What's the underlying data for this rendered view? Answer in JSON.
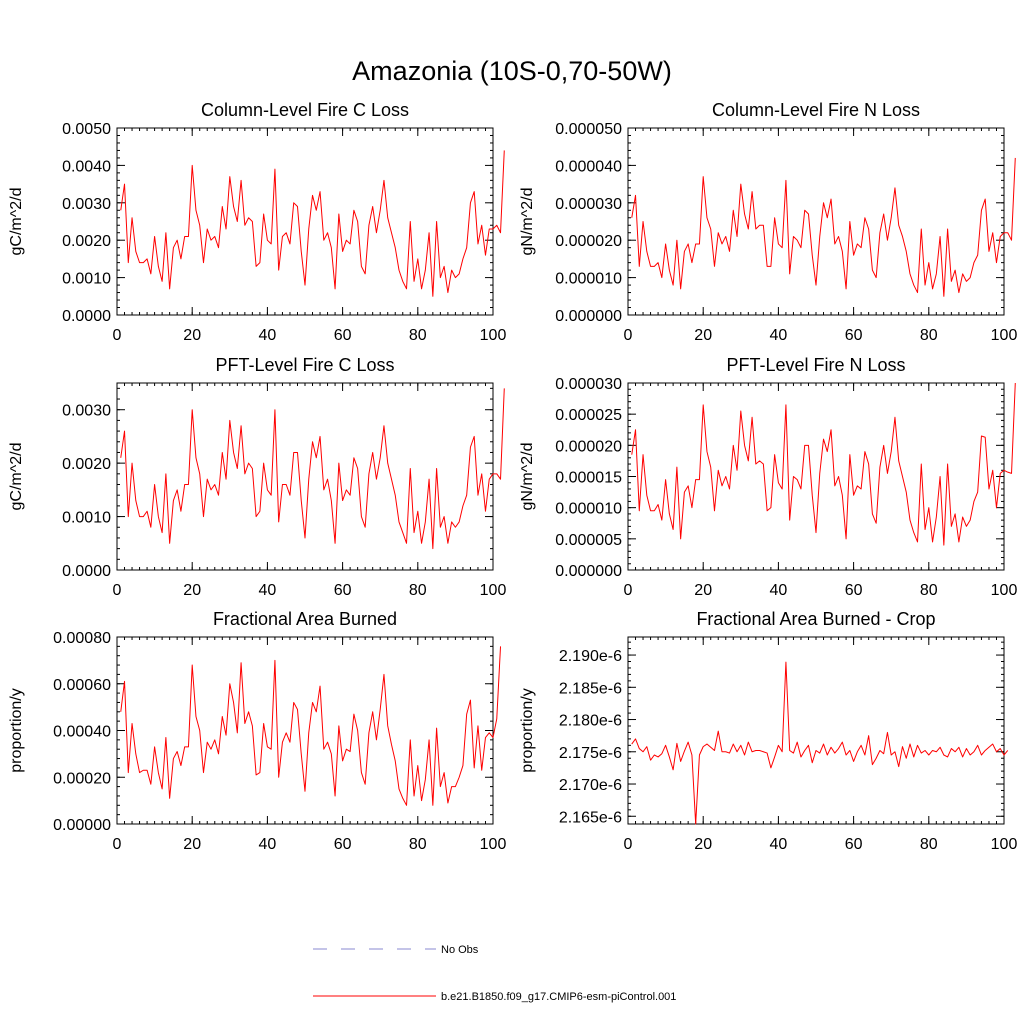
{
  "figure": {
    "title": "Amazonia (10S-0,70-50W)"
  },
  "legend": {
    "items": [
      {
        "label": "No Obs",
        "color": "#8a8ad0",
        "style": "dashed"
      },
      {
        "label": "b.e21.B1850.f09_g17.CMIP6-esm-piControl.001",
        "color": "#ff0000",
        "style": "solid"
      }
    ]
  },
  "chart_data": [
    {
      "type": "line",
      "title": "Column-Level Fire C Loss",
      "ylabel": "gC/m^2/d",
      "xlim": [
        0,
        100
      ],
      "ylim": [
        0,
        0.005
      ],
      "xticks": [
        0,
        20,
        40,
        60,
        80,
        100
      ],
      "xtick_labels": [
        "0",
        "20",
        "40",
        "60",
        "80",
        "100"
      ],
      "yticks": [
        0,
        0.001,
        0.002,
        0.003,
        0.004,
        0.005
      ],
      "ytick_labels": [
        "0.0000",
        "0.0010",
        "0.0020",
        "0.0030",
        "0.0040",
        "0.0050"
      ],
      "series": [
        {
          "color": "#ff0000",
          "x_start": 1,
          "values": [
            0.0028,
            0.0035,
            0.0014,
            0.0026,
            0.0017,
            0.0014,
            0.0014,
            0.0015,
            0.0011,
            0.0021,
            0.0013,
            0.0009,
            0.0022,
            0.0007,
            0.0018,
            0.002,
            0.0015,
            0.0021,
            0.0021,
            0.004,
            0.0028,
            0.0024,
            0.0014,
            0.0023,
            0.002,
            0.0021,
            0.0018,
            0.0029,
            0.0023,
            0.0037,
            0.0029,
            0.0025,
            0.0036,
            0.0024,
            0.0026,
            0.0025,
            0.0013,
            0.0014,
            0.0027,
            0.002,
            0.0019,
            0.0039,
            0.0012,
            0.0021,
            0.0022,
            0.0019,
            0.003,
            0.0029,
            0.0017,
            0.0008,
            0.0023,
            0.0032,
            0.0028,
            0.0033,
            0.002,
            0.0022,
            0.0018,
            0.0007,
            0.0027,
            0.0017,
            0.002,
            0.0019,
            0.0028,
            0.0025,
            0.0013,
            0.0011,
            0.0024,
            0.0029,
            0.0022,
            0.0028,
            0.0036,
            0.0026,
            0.0022,
            0.0018,
            0.0012,
            0.0009,
            0.0007,
            0.0025,
            0.0009,
            0.0015,
            0.0007,
            0.0012,
            0.0022,
            0.0005,
            0.0025,
            0.001,
            0.0013,
            0.0006,
            0.0012,
            0.001,
            0.0011,
            0.0015,
            0.0018,
            0.003,
            0.0033,
            0.0019,
            0.0024,
            0.0016,
            0.0023,
            0.0023,
            0.0024,
            0.0022,
            0.0044
          ]
        }
      ]
    },
    {
      "type": "line",
      "title": "Column-Level Fire N Loss",
      "ylabel": "gN/m^2/d",
      "xlim": [
        0,
        100
      ],
      "ylim": [
        0,
        5e-05
      ],
      "xticks": [
        0,
        20,
        40,
        60,
        80,
        100
      ],
      "xtick_labels": [
        "0",
        "20",
        "40",
        "60",
        "80",
        "100"
      ],
      "yticks": [
        0,
        1e-05,
        2e-05,
        3e-05,
        4e-05,
        5e-05
      ],
      "ytick_labels": [
        "0.000000",
        "0.000010",
        "0.000020",
        "0.000030",
        "0.000040",
        "0.000050"
      ],
      "series": [
        {
          "color": "#ff0000",
          "x_start": 1,
          "values": [
            2.6e-05,
            3.2e-05,
            1.3e-05,
            2.5e-05,
            1.7e-05,
            1.3e-05,
            1.3e-05,
            1.4e-05,
            1e-05,
            1.9e-05,
            1.2e-05,
            8e-06,
            2e-05,
            7e-06,
            1.7e-05,
            1.9e-05,
            1.4e-05,
            1.9e-05,
            1.9e-05,
            3.7e-05,
            2.6e-05,
            2.3e-05,
            1.3e-05,
            2.2e-05,
            1.9e-05,
            2.1e-05,
            1.7e-05,
            2.8e-05,
            2.1e-05,
            3.5e-05,
            2.7e-05,
            2.3e-05,
            3.3e-05,
            2.3e-05,
            2.4e-05,
            2.4e-05,
            1.3e-05,
            1.3e-05,
            2.6e-05,
            1.9e-05,
            1.8e-05,
            3.6e-05,
            1.1e-05,
            2.1e-05,
            2e-05,
            1.8e-05,
            2.8e-05,
            2.7e-05,
            1.6e-05,
            8e-06,
            2.1e-05,
            3e-05,
            2.6e-05,
            3.1e-05,
            1.9e-05,
            2.1e-05,
            1.7e-05,
            7e-06,
            2.5e-05,
            1.6e-05,
            1.9e-05,
            1.8e-05,
            2.6e-05,
            2.3e-05,
            1.2e-05,
            1e-05,
            2.2e-05,
            2.7e-05,
            2e-05,
            2.6e-05,
            3.4e-05,
            2.4e-05,
            2.1e-05,
            1.7e-05,
            1.1e-05,
            8e-06,
            6e-06,
            2.3e-05,
            8e-06,
            1.4e-05,
            7e-06,
            1.1e-05,
            2.1e-05,
            5e-06,
            2.3e-05,
            9e-06,
            1.2e-05,
            6e-06,
            1.1e-05,
            9e-06,
            1e-05,
            1.4e-05,
            1.6e-05,
            2.8e-05,
            3.1e-05,
            1.7e-05,
            2.2e-05,
            1.4e-05,
            2.1e-05,
            2.2e-05,
            2.2e-05,
            2e-05,
            4.2e-05
          ]
        }
      ]
    },
    {
      "type": "line",
      "title": "PFT-Level Fire C Loss",
      "ylabel": "gC/m^2/d",
      "xlim": [
        0,
        100
      ],
      "ylim": [
        0,
        0.0035
      ],
      "xticks": [
        0,
        20,
        40,
        60,
        80,
        100
      ],
      "xtick_labels": [
        "0",
        "20",
        "40",
        "60",
        "80",
        "100"
      ],
      "yticks": [
        0,
        0.001,
        0.002,
        0.003
      ],
      "ytick_labels": [
        "0.0000",
        "0.0010",
        "0.0020",
        "0.0030"
      ],
      "series": [
        {
          "color": "#ff0000",
          "x_start": 1,
          "values": [
            0.0021,
            0.0026,
            0.001,
            0.002,
            0.0013,
            0.001,
            0.001,
            0.0011,
            0.0008,
            0.0016,
            0.001,
            0.0007,
            0.0018,
            0.0005,
            0.0013,
            0.0015,
            0.0011,
            0.0016,
            0.0016,
            0.003,
            0.0021,
            0.0018,
            0.001,
            0.0017,
            0.0015,
            0.0016,
            0.0014,
            0.0022,
            0.0017,
            0.0028,
            0.0022,
            0.0019,
            0.0027,
            0.0018,
            0.002,
            0.0019,
            0.001,
            0.0011,
            0.002,
            0.0015,
            0.0014,
            0.003,
            0.0009,
            0.0016,
            0.0016,
            0.0014,
            0.0022,
            0.0022,
            0.0013,
            0.0006,
            0.0017,
            0.0024,
            0.0021,
            0.0025,
            0.0015,
            0.0017,
            0.0013,
            0.0005,
            0.002,
            0.0013,
            0.0015,
            0.0014,
            0.0021,
            0.0019,
            0.001,
            0.0008,
            0.0018,
            0.0022,
            0.0017,
            0.0021,
            0.0027,
            0.002,
            0.0017,
            0.0014,
            0.0009,
            0.0007,
            0.0005,
            0.0019,
            0.0007,
            0.0011,
            0.0005,
            0.0009,
            0.0017,
            0.0004,
            0.0019,
            0.0008,
            0.001,
            0.0005,
            0.0009,
            0.0008,
            0.0009,
            0.0012,
            0.0014,
            0.0023,
            0.0025,
            0.0014,
            0.0018,
            0.0011,
            0.0017,
            0.0018,
            0.0018,
            0.0017,
            0.0034
          ]
        }
      ]
    },
    {
      "type": "line",
      "title": "PFT-Level Fire N Loss",
      "ylabel": "gN/m^2/d",
      "xlim": [
        0,
        100
      ],
      "ylim": [
        0,
        3e-05
      ],
      "xticks": [
        0,
        20,
        40,
        60,
        80,
        100
      ],
      "xtick_labels": [
        "0",
        "20",
        "40",
        "60",
        "80",
        "100"
      ],
      "yticks": [
        0,
        5e-06,
        1e-05,
        1.5e-05,
        2e-05,
        2.5e-05,
        3e-05
      ],
      "ytick_labels": [
        "0.000000",
        "0.000005",
        "0.000010",
        "0.000015",
        "0.000020",
        "0.000025",
        "0.000030"
      ],
      "series": [
        {
          "color": "#ff0000",
          "x_start": 1,
          "values": [
            1.85e-05,
            2.25e-05,
            9.5e-06,
            1.85e-05,
            1.2e-05,
            9.5e-06,
            9.5e-06,
            1.05e-05,
            8e-06,
            1.45e-05,
            9e-06,
            6.5e-06,
            1.65e-05,
            5e-06,
            1.25e-05,
            1.35e-05,
            1e-05,
            1.45e-05,
            1.45e-05,
            2.65e-05,
            1.9e-05,
            1.65e-05,
            9.5e-06,
            1.6e-05,
            1.35e-05,
            1.5e-05,
            1.3e-05,
            2e-05,
            1.6e-05,
            2.55e-05,
            2e-05,
            1.75e-05,
            2.45e-05,
            1.7e-05,
            1.75e-05,
            1.7e-05,
            9.5e-06,
            1e-05,
            1.85e-05,
            1.4e-05,
            1.3e-05,
            2.65e-05,
            8e-06,
            1.5e-05,
            1.45e-05,
            1.3e-05,
            2e-05,
            2e-05,
            1.2e-05,
            6e-06,
            1.55e-05,
            2.1e-05,
            1.9e-05,
            2.25e-05,
            1.35e-05,
            1.5e-05,
            1.2e-05,
            5e-06,
            1.85e-05,
            1.2e-05,
            1.35e-05,
            1.3e-05,
            1.9e-05,
            1.7e-05,
            9e-06,
            7.5e-06,
            1.65e-05,
            2e-05,
            1.55e-05,
            1.9e-05,
            2.45e-05,
            1.75e-05,
            1.5e-05,
            1.25e-05,
            8e-06,
            6e-06,
            4.5e-06,
            1.7e-05,
            6.5e-06,
            1e-05,
            4.5e-06,
            8.5e-06,
            1.5e-05,
            4e-06,
            1.7e-05,
            7e-06,
            9e-06,
            4.5e-06,
            8.5e-06,
            7e-06,
            8e-06,
            1.1e-05,
            1.25e-05,
            2.15e-05,
            2.13e-05,
            1.3e-05,
            1.6e-05,
            1e-05,
            1.55e-05,
            1.6e-05,
            1.57e-05,
            1.55e-05,
            3e-05
          ]
        }
      ]
    },
    {
      "type": "line",
      "title": "Fractional Area Burned",
      "ylabel": "proportion/y",
      "xlim": [
        0,
        100
      ],
      "ylim": [
        0,
        0.0008
      ],
      "xticks": [
        0,
        20,
        40,
        60,
        80,
        100
      ],
      "xtick_labels": [
        "0",
        "20",
        "40",
        "60",
        "80",
        "100"
      ],
      "yticks": [
        0,
        0.0002,
        0.0004,
        0.0006,
        0.0008
      ],
      "ytick_labels": [
        "0.00000",
        "0.00020",
        "0.00040",
        "0.00060",
        "0.00080"
      ],
      "series": [
        {
          "color": "#ff0000",
          "x_start": 1,
          "values": [
            0.00048,
            0.00061,
            0.00022,
            0.00043,
            0.0003,
            0.00022,
            0.00023,
            0.00023,
            0.00017,
            0.00033,
            0.00022,
            0.00015,
            0.00037,
            0.00011,
            0.00028,
            0.00031,
            0.00025,
            0.00033,
            0.00033,
            0.00068,
            0.00046,
            0.0004,
            0.00022,
            0.00035,
            0.00032,
            0.00036,
            0.0003,
            0.00046,
            0.00038,
            0.0006,
            0.00052,
            0.00039,
            0.00069,
            0.00043,
            0.00048,
            0.00042,
            0.00021,
            0.00022,
            0.00043,
            0.00033,
            0.00032,
            0.0007,
            0.0002,
            0.00035,
            0.00039,
            0.00035,
            0.00052,
            0.00049,
            0.0003,
            0.00014,
            0.00039,
            0.00052,
            0.00048,
            0.00059,
            0.00032,
            0.00035,
            0.0003,
            0.00012,
            0.00042,
            0.00027,
            0.00032,
            0.00031,
            0.00047,
            0.0004,
            0.00022,
            0.00017,
            0.00039,
            0.00048,
            0.00036,
            0.00049,
            0.00064,
            0.00042,
            0.00034,
            0.00027,
            0.00015,
            0.00011,
            8e-05,
            0.00036,
            0.00012,
            0.00025,
            0.0001,
            0.00019,
            0.00036,
            8e-05,
            0.00041,
            0.00016,
            0.00022,
            9e-05,
            0.00016,
            0.00016,
            0.0002,
            0.00025,
            0.00047,
            0.00053,
            0.00024,
            0.00042,
            0.00023,
            0.00037,
            0.00039,
            0.00037,
            0.00045,
            0.00076
          ]
        }
      ]
    },
    {
      "type": "line",
      "title": "Fractional Area Burned - Crop",
      "ylabel": "proportion/y",
      "xlim": [
        0,
        100
      ],
      "ylim": [
        2.1638e-06,
        2.1928e-06
      ],
      "xticks": [
        0,
        20,
        40,
        60,
        80,
        100
      ],
      "xtick_labels": [
        "0",
        "20",
        "40",
        "60",
        "80",
        "100"
      ],
      "yticks": [
        2.165e-06,
        2.17e-06,
        2.175e-06,
        2.18e-06,
        2.185e-06,
        2.19e-06
      ],
      "ytick_labels": [
        "2.165e-6",
        "2.170e-6",
        "2.175e-6",
        "2.180e-6",
        "2.185e-6",
        "2.190e-6"
      ],
      "series": [
        {
          "color": "#ff0000",
          "x_start": 1,
          "values": [
            2.1762e-06,
            2.177e-06,
            2.1755e-06,
            2.175e-06,
            2.1758e-06,
            2.1737e-06,
            2.1745e-06,
            2.1742e-06,
            2.1747e-06,
            2.176e-06,
            2.1742e-06,
            2.1722e-06,
            2.1763e-06,
            2.1735e-06,
            2.1751e-06,
            2.1765e-06,
            2.1745e-06,
            2.1638e-06,
            2.1745e-06,
            2.1758e-06,
            2.1762e-06,
            2.1757e-06,
            2.1752e-06,
            2.1782e-06,
            2.175e-06,
            2.175e-06,
            2.1748e-06,
            2.1762e-06,
            2.175e-06,
            2.176e-06,
            2.1745e-06,
            2.1765e-06,
            2.175e-06,
            2.1752e-06,
            2.1752e-06,
            2.175e-06,
            2.1748e-06,
            2.1725e-06,
            2.1742e-06,
            2.176e-06,
            2.175e-06,
            2.1889e-06,
            2.1752e-06,
            2.1748e-06,
            2.1765e-06,
            2.1742e-06,
            2.1752e-06,
            2.176e-06,
            2.1733e-06,
            2.1752e-06,
            2.1748e-06,
            2.1762e-06,
            2.1745e-06,
            2.1757e-06,
            2.1748e-06,
            2.1755e-06,
            2.1765e-06,
            2.1745e-06,
            2.1752e-06,
            2.1735e-06,
            2.175e-06,
            2.176e-06,
            2.1745e-06,
            2.1775e-06,
            2.173e-06,
            2.174e-06,
            2.1752e-06,
            2.1747e-06,
            2.178e-06,
            2.1745e-06,
            2.175e-06,
            2.1727e-06,
            2.1758e-06,
            2.174e-06,
            2.1762e-06,
            2.1742e-06,
            2.176e-06,
            2.1748e-06,
            2.1752e-06,
            2.1745e-06,
            2.1752e-06,
            2.175e-06,
            2.1757e-06,
            2.1745e-06,
            2.1742e-06,
            2.1755e-06,
            2.175e-06,
            2.1757e-06,
            2.1742e-06,
            2.1755e-06,
            2.1745e-06,
            2.175e-06,
            2.176e-06,
            2.1745e-06,
            2.1752e-06,
            2.1757e-06,
            2.1762e-06,
            2.175e-06,
            2.1755e-06,
            2.1745e-06,
            2.1752e-06
          ]
        }
      ]
    }
  ]
}
